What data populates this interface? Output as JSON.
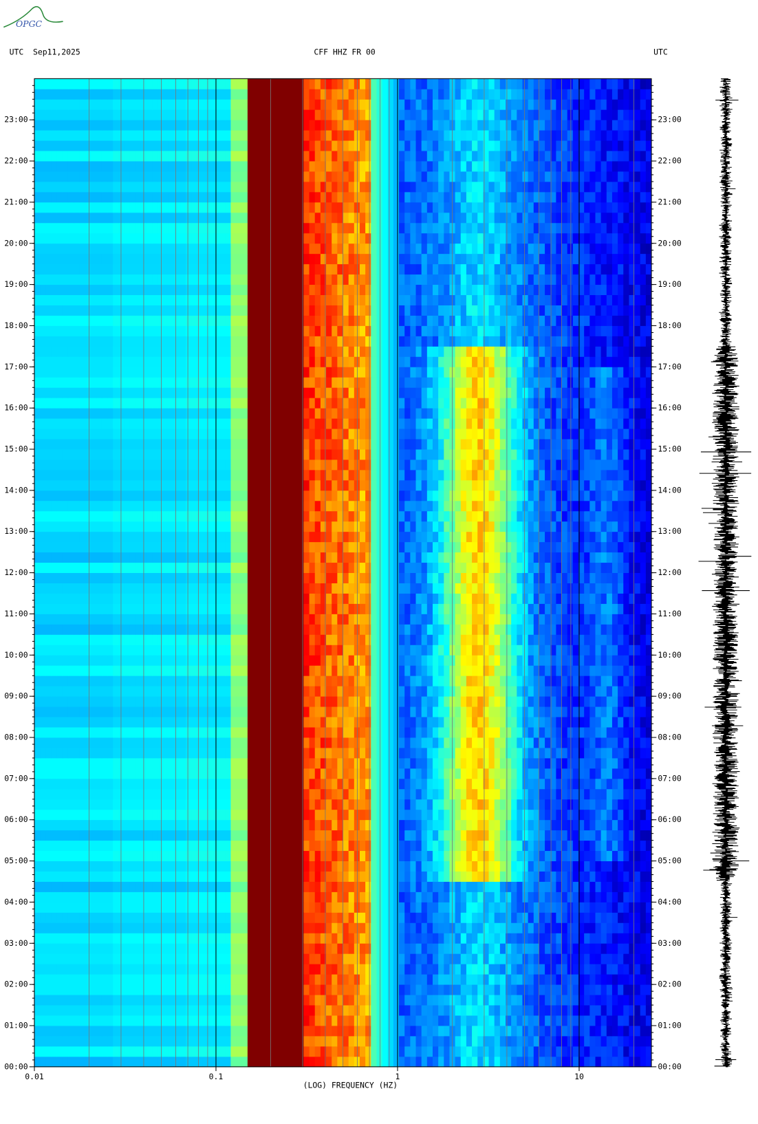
{
  "chart_data": {
    "type": "spectrogram",
    "logo": "OPGC",
    "title_left": "UTC  Sep11,2025",
    "title": "CFF HHZ FR 00",
    "title_right": "UTC",
    "x_label": "(LOG) FREQUENCY (HZ)",
    "x_scale": "log",
    "xlim": [
      0.01,
      25
    ],
    "xticks": [
      0.01,
      0.1,
      1,
      10
    ],
    "ylim": [
      0,
      24
    ],
    "yticks": [
      {
        "value": 0,
        "label": "00:00"
      },
      {
        "value": 1,
        "label": "01:00"
      },
      {
        "value": 2,
        "label": "02:00"
      },
      {
        "value": 3,
        "label": "03:00"
      },
      {
        "value": 4,
        "label": "04:00"
      },
      {
        "value": 5,
        "label": "05:00"
      },
      {
        "value": 6,
        "label": "06:00"
      },
      {
        "value": 7,
        "label": "07:00"
      },
      {
        "value": 8,
        "label": "08:00"
      },
      {
        "value": 9,
        "label": "09:00"
      },
      {
        "value": 10,
        "label": "10:00"
      },
      {
        "value": 11,
        "label": "11:00"
      },
      {
        "value": 12,
        "label": "12:00"
      },
      {
        "value": 13,
        "label": "13:00"
      },
      {
        "value": 14,
        "label": "14:00"
      },
      {
        "value": 15,
        "label": "15:00"
      },
      {
        "value": 16,
        "label": "16:00"
      },
      {
        "value": 17,
        "label": "17:00"
      },
      {
        "value": 18,
        "label": "18:00"
      },
      {
        "value": 19,
        "label": "19:00"
      },
      {
        "value": 20,
        "label": "20:00"
      },
      {
        "value": 21,
        "label": "21:00"
      },
      {
        "value": 22,
        "label": "22:00"
      },
      {
        "value": 23,
        "label": "23:00"
      }
    ]
  }
}
